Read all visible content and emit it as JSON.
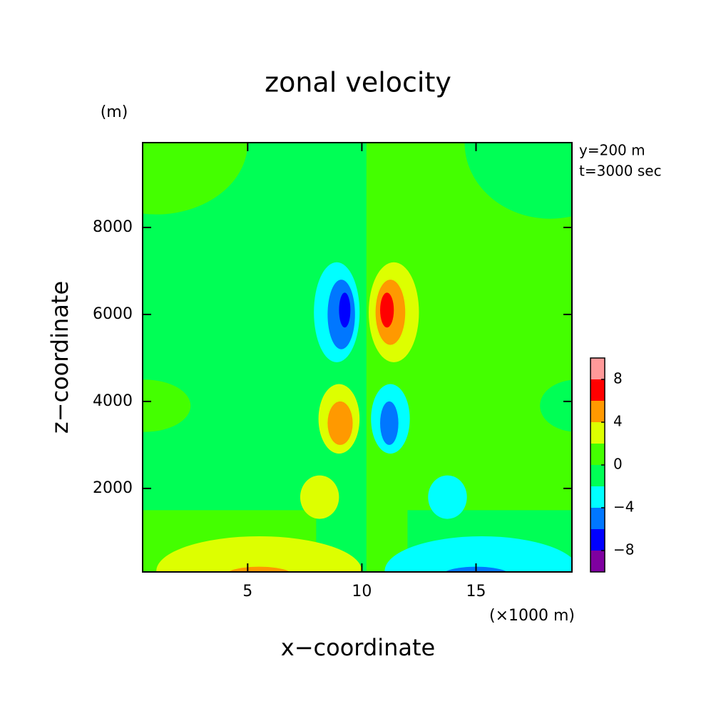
{
  "chart_data": {
    "type": "contour",
    "title": "zonal velocity",
    "x_label": "x−coordinate",
    "y_label": "z−coordinate",
    "x_unit": "(×1000 m)",
    "y_unit": "(m)",
    "annotations": [
      "y=200 m",
      "t=3000 sec"
    ],
    "xlim": [
      0.4,
      19.2
    ],
    "xticks": [
      5,
      10,
      15
    ],
    "ylim": [
      80,
      9950
    ],
    "yticks": [
      2000,
      4000,
      6000,
      8000
    ],
    "levels": [
      -10,
      -8,
      -6,
      -4,
      -2,
      0,
      2,
      4,
      6,
      8,
      10
    ],
    "colors": [
      "#7f00a0",
      "#0000ff",
      "#0077ff",
      "#00ffff",
      "#00ff55",
      "#44ff00",
      "#ddff00",
      "#ff9900",
      "#ff0000",
      "#ff9999"
    ],
    "colorbar_ticks": [
      {
        "value": -8,
        "label": "−8"
      },
      {
        "value": -4,
        "label": "−4"
      },
      0,
      4,
      8
    ],
    "background": -2,
    "regions": [
      {
        "shape": "rect",
        "level": 0,
        "x": [
          10.2,
          19.2
        ],
        "z": [
          80,
          9950
        ]
      },
      {
        "shape": "ellipse",
        "level": 0,
        "x": [
          -3,
          5
        ],
        "z": [
          8300,
          11600
        ]
      },
      {
        "shape": "ellipse",
        "level": -2,
        "x": [
          14.5,
          22
        ],
        "z": [
          8200,
          11700
        ]
      },
      {
        "shape": "ellipse",
        "level": 0,
        "x": [
          -1.5,
          2.5
        ],
        "z": [
          3300,
          4500
        ]
      },
      {
        "shape": "ellipse",
        "level": -2,
        "x": [
          17.8,
          21
        ],
        "z": [
          3300,
          4500
        ]
      },
      {
        "shape": "rect",
        "level": 0,
        "x": [
          0.4,
          8
        ],
        "z": [
          80,
          1500
        ]
      },
      {
        "shape": "rect",
        "level": -2,
        "x": [
          12,
          19.2
        ],
        "z": [
          80,
          1500
        ]
      },
      {
        "shape": "ellipse",
        "level": -4,
        "x": [
          7.9,
          9.9
        ],
        "z": [
          4900,
          7200
        ]
      },
      {
        "shape": "ellipse",
        "level": -6,
        "x": [
          8.5,
          9.7
        ],
        "z": [
          5200,
          6800
        ]
      },
      {
        "shape": "ellipse",
        "level": -8,
        "x": [
          9.0,
          9.5
        ],
        "z": [
          5700,
          6500
        ]
      },
      {
        "shape": "ellipse",
        "level": 2,
        "x": [
          10.3,
          12.5
        ],
        "z": [
          4900,
          7200
        ]
      },
      {
        "shape": "ellipse",
        "level": 4,
        "x": [
          10.6,
          11.9
        ],
        "z": [
          5300,
          6800
        ]
      },
      {
        "shape": "ellipse",
        "level": 6,
        "x": [
          10.8,
          11.4
        ],
        "z": [
          5700,
          6500
        ]
      },
      {
        "shape": "ellipse",
        "level": 2,
        "x": [
          8.1,
          9.9
        ],
        "z": [
          2800,
          4400
        ]
      },
      {
        "shape": "ellipse",
        "level": 4,
        "x": [
          8.5,
          9.6
        ],
        "z": [
          3000,
          4000
        ]
      },
      {
        "shape": "ellipse",
        "level": -4,
        "x": [
          10.4,
          12.1
        ],
        "z": [
          2800,
          4400
        ]
      },
      {
        "shape": "ellipse",
        "level": -6,
        "x": [
          10.8,
          11.6
        ],
        "z": [
          3000,
          4000
        ]
      },
      {
        "shape": "ellipse",
        "level": 2,
        "x": [
          7.3,
          9.0
        ],
        "z": [
          1300,
          2300
        ]
      },
      {
        "shape": "ellipse",
        "level": -4,
        "x": [
          12.9,
          14.6
        ],
        "z": [
          1300,
          2300
        ]
      },
      {
        "shape": "ellipse",
        "level": 2,
        "x": [
          1,
          10
        ],
        "z": [
          -700,
          900
        ]
      },
      {
        "shape": "ellipse",
        "level": 4,
        "x": [
          4,
          7
        ],
        "z": [
          -200,
          200
        ]
      },
      {
        "shape": "ellipse",
        "level": -4,
        "x": [
          11,
          19.5
        ],
        "z": [
          -700,
          900
        ]
      },
      {
        "shape": "ellipse",
        "level": -6,
        "x": [
          13.5,
          16.5
        ],
        "z": [
          -200,
          200
        ]
      }
    ]
  }
}
